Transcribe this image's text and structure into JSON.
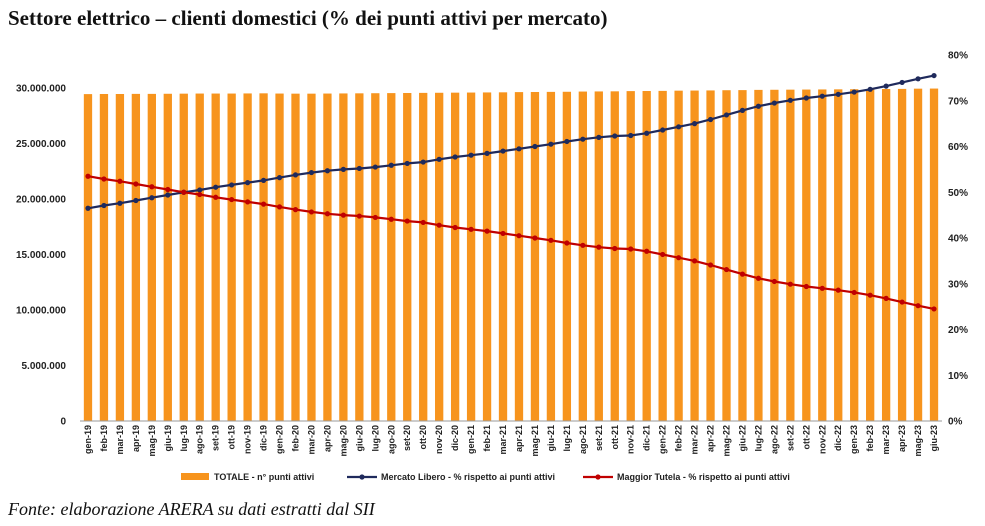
{
  "title": "Settore elettrico – clienti domestici (% dei punti attivi per mercato)",
  "source": "Fonte: elaborazione ARERA su dati estratti dal SII",
  "colors": {
    "bar": "#F7941D",
    "libero": "#1F2A5C",
    "tutela": "#C00000"
  },
  "chart_data": {
    "type": "bar",
    "categories": [
      "gen-19",
      "feb-19",
      "mar-19",
      "apr-19",
      "mag-19",
      "giu-19",
      "lug-19",
      "ago-19",
      "set-19",
      "ott-19",
      "nov-19",
      "dic-19",
      "gen-20",
      "feb-20",
      "mar-20",
      "apr-20",
      "mag-20",
      "giu-20",
      "lug-20",
      "ago-20",
      "set-20",
      "ott-20",
      "nov-20",
      "dic-20",
      "gen-21",
      "feb-21",
      "mar-21",
      "apr-21",
      "mag-21",
      "giu-21",
      "lug-21",
      "ago-21",
      "set-21",
      "ott-21",
      "nov-21",
      "dic-21",
      "gen-22",
      "feb-22",
      "mar-22",
      "apr-22",
      "mag-22",
      "giu-22",
      "lug-22",
      "ago-22",
      "set-22",
      "ott-22",
      "nov-22",
      "dic-22",
      "gen-23",
      "feb-23",
      "mar-23",
      "apr-23",
      "mag-23",
      "giu-23"
    ],
    "y_left": {
      "ylim": [
        0,
        30000000
      ],
      "ticks": [
        "0",
        "5.000.000",
        "10.000.000",
        "15.000.000",
        "20.000.000",
        "25.000.000",
        "30.000.000"
      ]
    },
    "y_right": {
      "ylim": [
        0,
        80
      ],
      "ticks": [
        "0%",
        "10%",
        "20%",
        "30%",
        "40%",
        "50%",
        "60%",
        "70%",
        "80%"
      ]
    },
    "grid": false,
    "legend_position": "bottom",
    "series": [
      {
        "name": "TOTALE - n° punti attivi",
        "type": "bar",
        "axis": "left",
        "values": [
          29450000,
          29460000,
          29460000,
          29470000,
          29470000,
          29480000,
          29490000,
          29500000,
          29500000,
          29500000,
          29510000,
          29520000,
          29500000,
          29490000,
          29490000,
          29500000,
          29510000,
          29520000,
          29530000,
          29540000,
          29550000,
          29560000,
          29570000,
          29580000,
          29590000,
          29600000,
          29610000,
          29630000,
          29640000,
          29650000,
          29660000,
          29680000,
          29690000,
          29700000,
          29720000,
          29730000,
          29740000,
          29760000,
          29770000,
          29780000,
          29800000,
          29810000,
          29830000,
          29840000,
          29850000,
          29860000,
          29870000,
          29880000,
          29890000,
          29900000,
          29910000,
          29920000,
          29940000,
          29950000
        ]
      },
      {
        "name": "Mercato Libero - % rispetto ai punti attivi",
        "type": "line",
        "axis": "right",
        "values": [
          46.5,
          47.1,
          47.6,
          48.2,
          48.8,
          49.4,
          50.0,
          50.5,
          51.1,
          51.6,
          52.1,
          52.6,
          53.2,
          53.8,
          54.3,
          54.7,
          55.0,
          55.2,
          55.5,
          55.9,
          56.3,
          56.6,
          57.2,
          57.7,
          58.1,
          58.5,
          59.0,
          59.5,
          60.0,
          60.5,
          61.1,
          61.6,
          62.0,
          62.3,
          62.4,
          62.9,
          63.6,
          64.3,
          65.0,
          65.9,
          66.9,
          67.9,
          68.8,
          69.5,
          70.1,
          70.6,
          71.0,
          71.4,
          71.9,
          72.5,
          73.2,
          74.0,
          74.8,
          75.5
        ]
      },
      {
        "name": "Maggior Tutela - % rispetto ai punti attivi",
        "type": "line",
        "axis": "right",
        "values": [
          53.5,
          52.9,
          52.4,
          51.8,
          51.2,
          50.6,
          50.0,
          49.5,
          48.9,
          48.4,
          47.9,
          47.4,
          46.8,
          46.2,
          45.7,
          45.3,
          45.0,
          44.8,
          44.5,
          44.1,
          43.7,
          43.4,
          42.8,
          42.3,
          41.9,
          41.5,
          41.0,
          40.5,
          40.0,
          39.5,
          38.9,
          38.4,
          38.0,
          37.7,
          37.6,
          37.1,
          36.4,
          35.7,
          35.0,
          34.1,
          33.1,
          32.1,
          31.2,
          30.5,
          29.9,
          29.4,
          29.0,
          28.6,
          28.1,
          27.5,
          26.8,
          26.0,
          25.2,
          24.5
        ]
      }
    ]
  }
}
